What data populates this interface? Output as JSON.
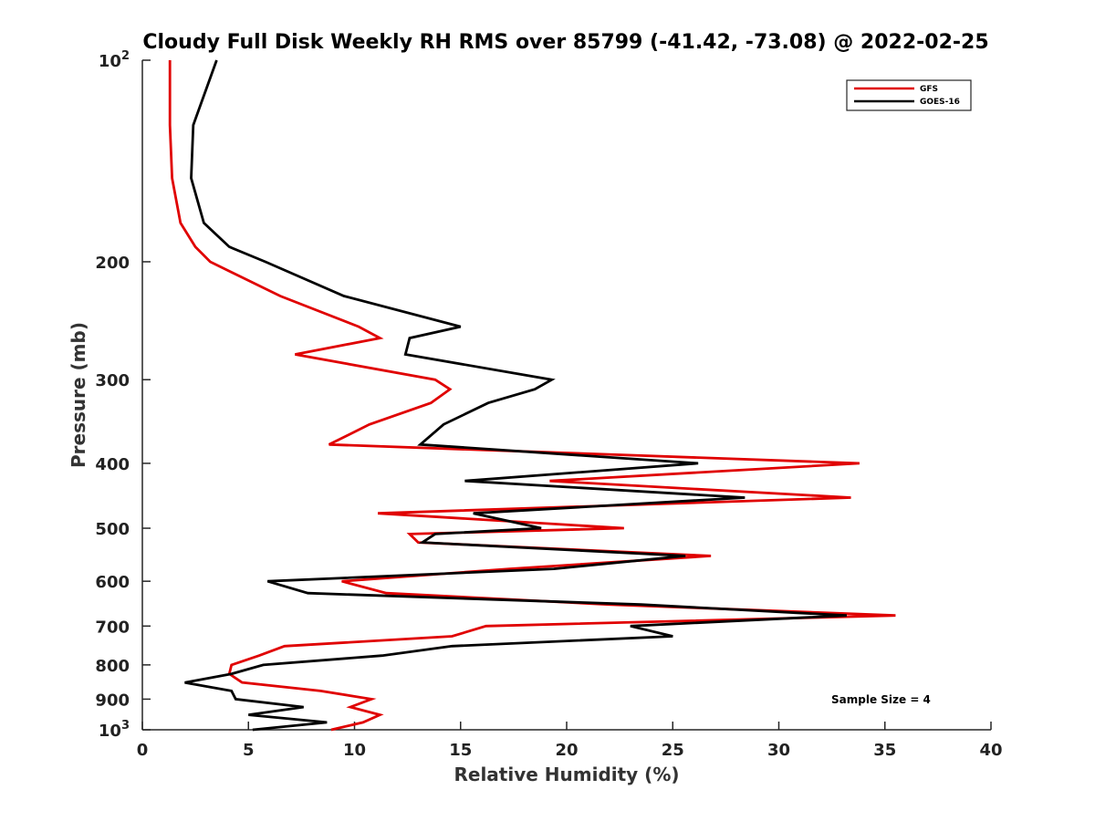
{
  "chart_data": {
    "type": "line",
    "title": "Cloudy Full Disk Weekly RH RMS over 85799 (-41.42, -73.08) @ 2022-02-25",
    "xlabel": "Relative Humidity (%)",
    "ylabel": "Pressure (mb)",
    "xlim": [
      0,
      40
    ],
    "ylim": [
      100,
      1000
    ],
    "y_scale": "log",
    "y_reversed": true,
    "grid": false,
    "legend_position": "top-right",
    "x_ticks": [
      0,
      5,
      10,
      15,
      20,
      25,
      30,
      35,
      40
    ],
    "x_tick_labels": [
      "0",
      "5",
      "10",
      "15",
      "20",
      "25",
      "30",
      "35",
      "40"
    ],
    "y_ticks": [
      100,
      200,
      300,
      400,
      500,
      600,
      700,
      800,
      900,
      1000
    ],
    "y_tick_labels": [
      "10^2",
      "200",
      "300",
      "400",
      "500",
      "600",
      "700",
      "800",
      "900",
      "10^3"
    ],
    "annotation": "Sample Size = 4",
    "series": [
      {
        "name": "GFS",
        "color": "#e00000",
        "points": [
          [
            1.3,
            100
          ],
          [
            1.3,
            125
          ],
          [
            1.4,
            150
          ],
          [
            1.8,
            175
          ],
          [
            2.5,
            190
          ],
          [
            3.2,
            200
          ],
          [
            6.5,
            225
          ],
          [
            10.2,
            250
          ],
          [
            11.2,
            260
          ],
          [
            7.2,
            275
          ],
          [
            13.8,
            300
          ],
          [
            14.5,
            310
          ],
          [
            13.6,
            325
          ],
          [
            10.7,
            350
          ],
          [
            8.8,
            375
          ],
          [
            33.8,
            400
          ],
          [
            19.2,
            425
          ],
          [
            33.4,
            450
          ],
          [
            11.1,
            475
          ],
          [
            22.7,
            500
          ],
          [
            12.6,
            510
          ],
          [
            13.0,
            525
          ],
          [
            26.8,
            550
          ],
          [
            17.3,
            575
          ],
          [
            9.4,
            600
          ],
          [
            11.5,
            625
          ],
          [
            22.0,
            650
          ],
          [
            35.5,
            675
          ],
          [
            16.2,
            700
          ],
          [
            14.6,
            725
          ],
          [
            6.7,
            750
          ],
          [
            5.5,
            775
          ],
          [
            4.2,
            800
          ],
          [
            4.1,
            825
          ],
          [
            4.7,
            850
          ],
          [
            8.4,
            875
          ],
          [
            10.8,
            900
          ],
          [
            9.8,
            925
          ],
          [
            11.2,
            950
          ],
          [
            10.4,
            975
          ],
          [
            8.9,
            1000
          ]
        ]
      },
      {
        "name": "GOES-16",
        "color": "#000000",
        "points": [
          [
            3.5,
            100
          ],
          [
            2.4,
            125
          ],
          [
            2.3,
            150
          ],
          [
            2.9,
            175
          ],
          [
            4.1,
            190
          ],
          [
            5.8,
            200
          ],
          [
            9.5,
            225
          ],
          [
            15.0,
            250
          ],
          [
            12.6,
            260
          ],
          [
            12.4,
            275
          ],
          [
            19.3,
            300
          ],
          [
            18.5,
            310
          ],
          [
            16.3,
            325
          ],
          [
            14.2,
            350
          ],
          [
            13.1,
            375
          ],
          [
            26.2,
            400
          ],
          [
            15.2,
            425
          ],
          [
            28.4,
            450
          ],
          [
            15.6,
            475
          ],
          [
            18.8,
            500
          ],
          [
            13.8,
            510
          ],
          [
            13.2,
            525
          ],
          [
            25.6,
            550
          ],
          [
            19.4,
            575
          ],
          [
            5.9,
            600
          ],
          [
            7.8,
            625
          ],
          [
            23.5,
            650
          ],
          [
            33.2,
            675
          ],
          [
            23.0,
            700
          ],
          [
            25.0,
            725
          ],
          [
            14.6,
            750
          ],
          [
            11.3,
            775
          ],
          [
            5.7,
            800
          ],
          [
            4.2,
            825
          ],
          [
            2.0,
            850
          ],
          [
            4.2,
            875
          ],
          [
            4.4,
            900
          ],
          [
            7.6,
            925
          ],
          [
            5.0,
            950
          ],
          [
            8.7,
            975
          ],
          [
            5.2,
            1000
          ]
        ]
      }
    ]
  }
}
